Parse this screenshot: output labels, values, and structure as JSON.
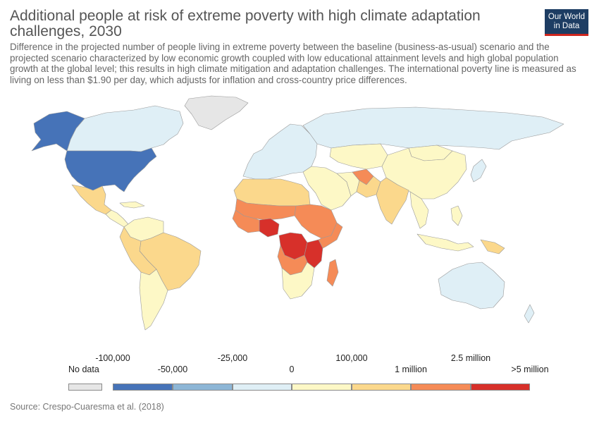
{
  "header": {
    "title": "Additional people at risk of extreme poverty with high climate adaptation challenges, 2030",
    "subtitle": "Difference in the projected number of people living in extreme poverty between the baseline (business-as-usual) scenario and the projected scenario characterized by low economic growth coupled with low educational attainment levels and high global population growth at the global level; this results in high climate mitigation and adaptation challenges. The international poverty line is measured as living on less than $1.90 per day, which adjusts for inflation and cross-country price differences."
  },
  "logo": {
    "line1": "Our World",
    "line2": "in Data"
  },
  "legend": {
    "no_data_label": "No data",
    "no_data_color": "#e6e6e6",
    "ticks_top": [
      "-100,000",
      "-25,000",
      "100,000",
      "2.5 million"
    ],
    "ticks_bottom": [
      "-50,000",
      "0",
      "1 million",
      ">5 million"
    ],
    "bins": [
      {
        "color": "#4673b8"
      },
      {
        "color": "#8db6d6"
      },
      {
        "color": "#dfeff6"
      },
      {
        "color": "#fdf8c6"
      },
      {
        "color": "#fbd88c"
      },
      {
        "color": "#f58b57"
      },
      {
        "color": "#d7302a"
      }
    ]
  },
  "map_colors": {
    "no_data": "#e6e6e6",
    "lt_-100k": "#4673b8",
    "-100k_-50k": "#8db6d6",
    "-25k_0": "#dfeff6",
    "0_100k": "#fdf8c6",
    "100k_1m": "#fbd88c",
    "1m_2.5m": "#f58b57",
    "gt_5m": "#d7302a",
    "ocean": "#ffffff",
    "border": "#9a9a9a"
  },
  "source": "Source: Crespo-Cuaresma et al. (2018)"
}
